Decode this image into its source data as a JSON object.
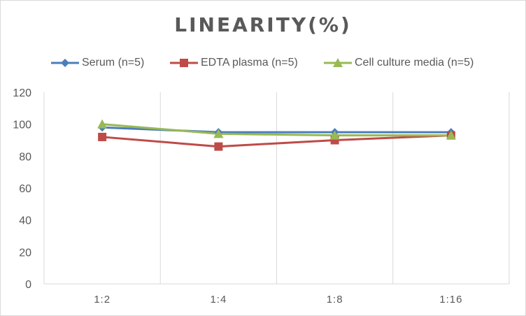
{
  "chart_data": {
    "type": "line",
    "title": "LINEARITY(%)",
    "xlabel": "",
    "ylabel": "",
    "categories": [
      "1:2",
      "1:4",
      "1:8",
      "1:16"
    ],
    "ylim": [
      0,
      120
    ],
    "yticks": [
      0,
      20,
      40,
      60,
      80,
      100,
      120
    ],
    "grid": "vertical",
    "legend_position": "top",
    "series": [
      {
        "name": "Serum (n=5)",
        "values": [
          98,
          95,
          95,
          95
        ],
        "color": "#4a7ebb",
        "marker": "diamond"
      },
      {
        "name": "EDTA plasma (n=5)",
        "values": [
          92,
          86,
          90,
          93
        ],
        "color": "#be4b48",
        "marker": "square"
      },
      {
        "name": "Cell culture media (n=5)",
        "values": [
          100,
          94,
          93,
          93
        ],
        "color": "#98b954",
        "marker": "triangle"
      }
    ]
  }
}
